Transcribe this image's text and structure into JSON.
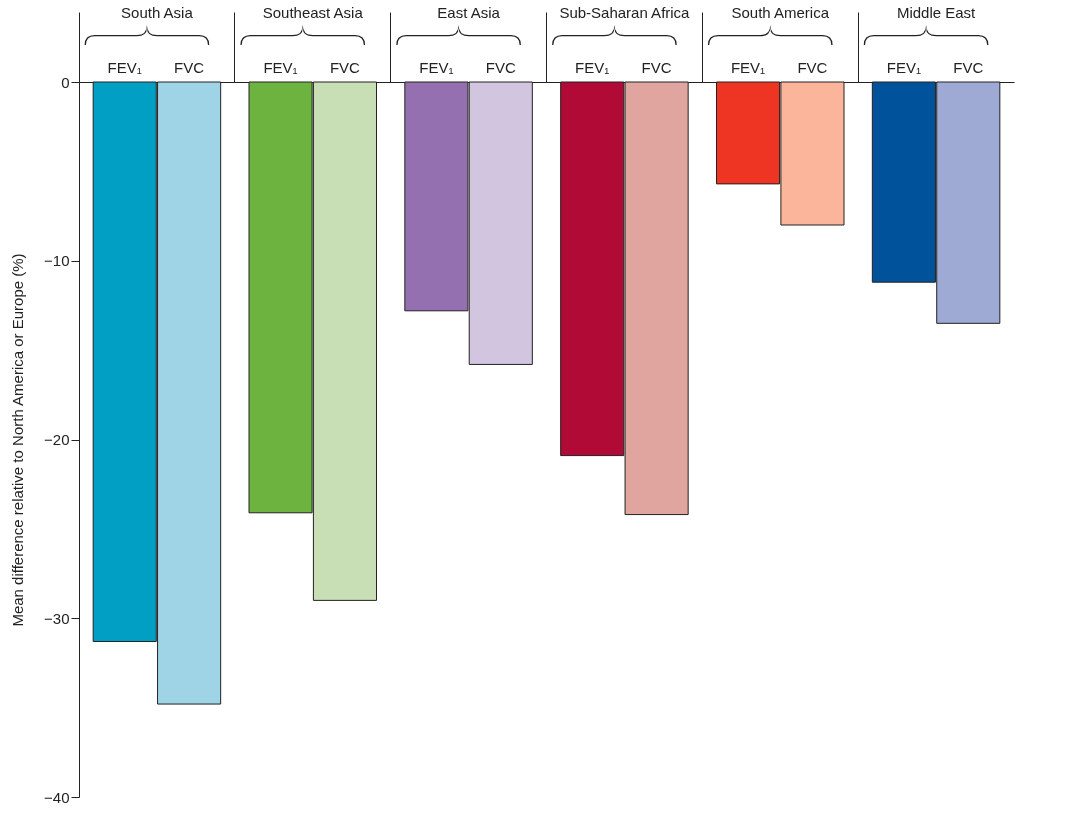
{
  "chart_data": {
    "type": "bar",
    "ylabel": "Mean difference relative to North America or Europe (%)",
    "categories": [
      "South Asia",
      "Southeast Asia",
      "East Asia",
      "Sub-Saharan Africa",
      "South America",
      "Middle East"
    ],
    "series": [
      {
        "name": "FEV₁",
        "colors": [
          "#009fc3",
          "#6db33f",
          "#9470b0",
          "#b10a37",
          "#ee3524",
          "#00529b"
        ],
        "values": [
          -31.3,
          -24.1,
          -12.8,
          -20.9,
          -5.7,
          -11.2
        ]
      },
      {
        "name": "FVC",
        "colors": [
          "#9fd4e6",
          "#c8dfb6",
          "#d2c5e0",
          "#e0a59f",
          "#fbb59b",
          "#9eaad3"
        ],
        "values": [
          -34.8,
          -29.0,
          -15.8,
          -24.2,
          -8.0,
          -13.5
        ]
      }
    ],
    "ylim": [
      -40,
      0
    ],
    "yticks": [
      -40,
      -30,
      -20,
      -10,
      0
    ],
    "grid": false
  }
}
